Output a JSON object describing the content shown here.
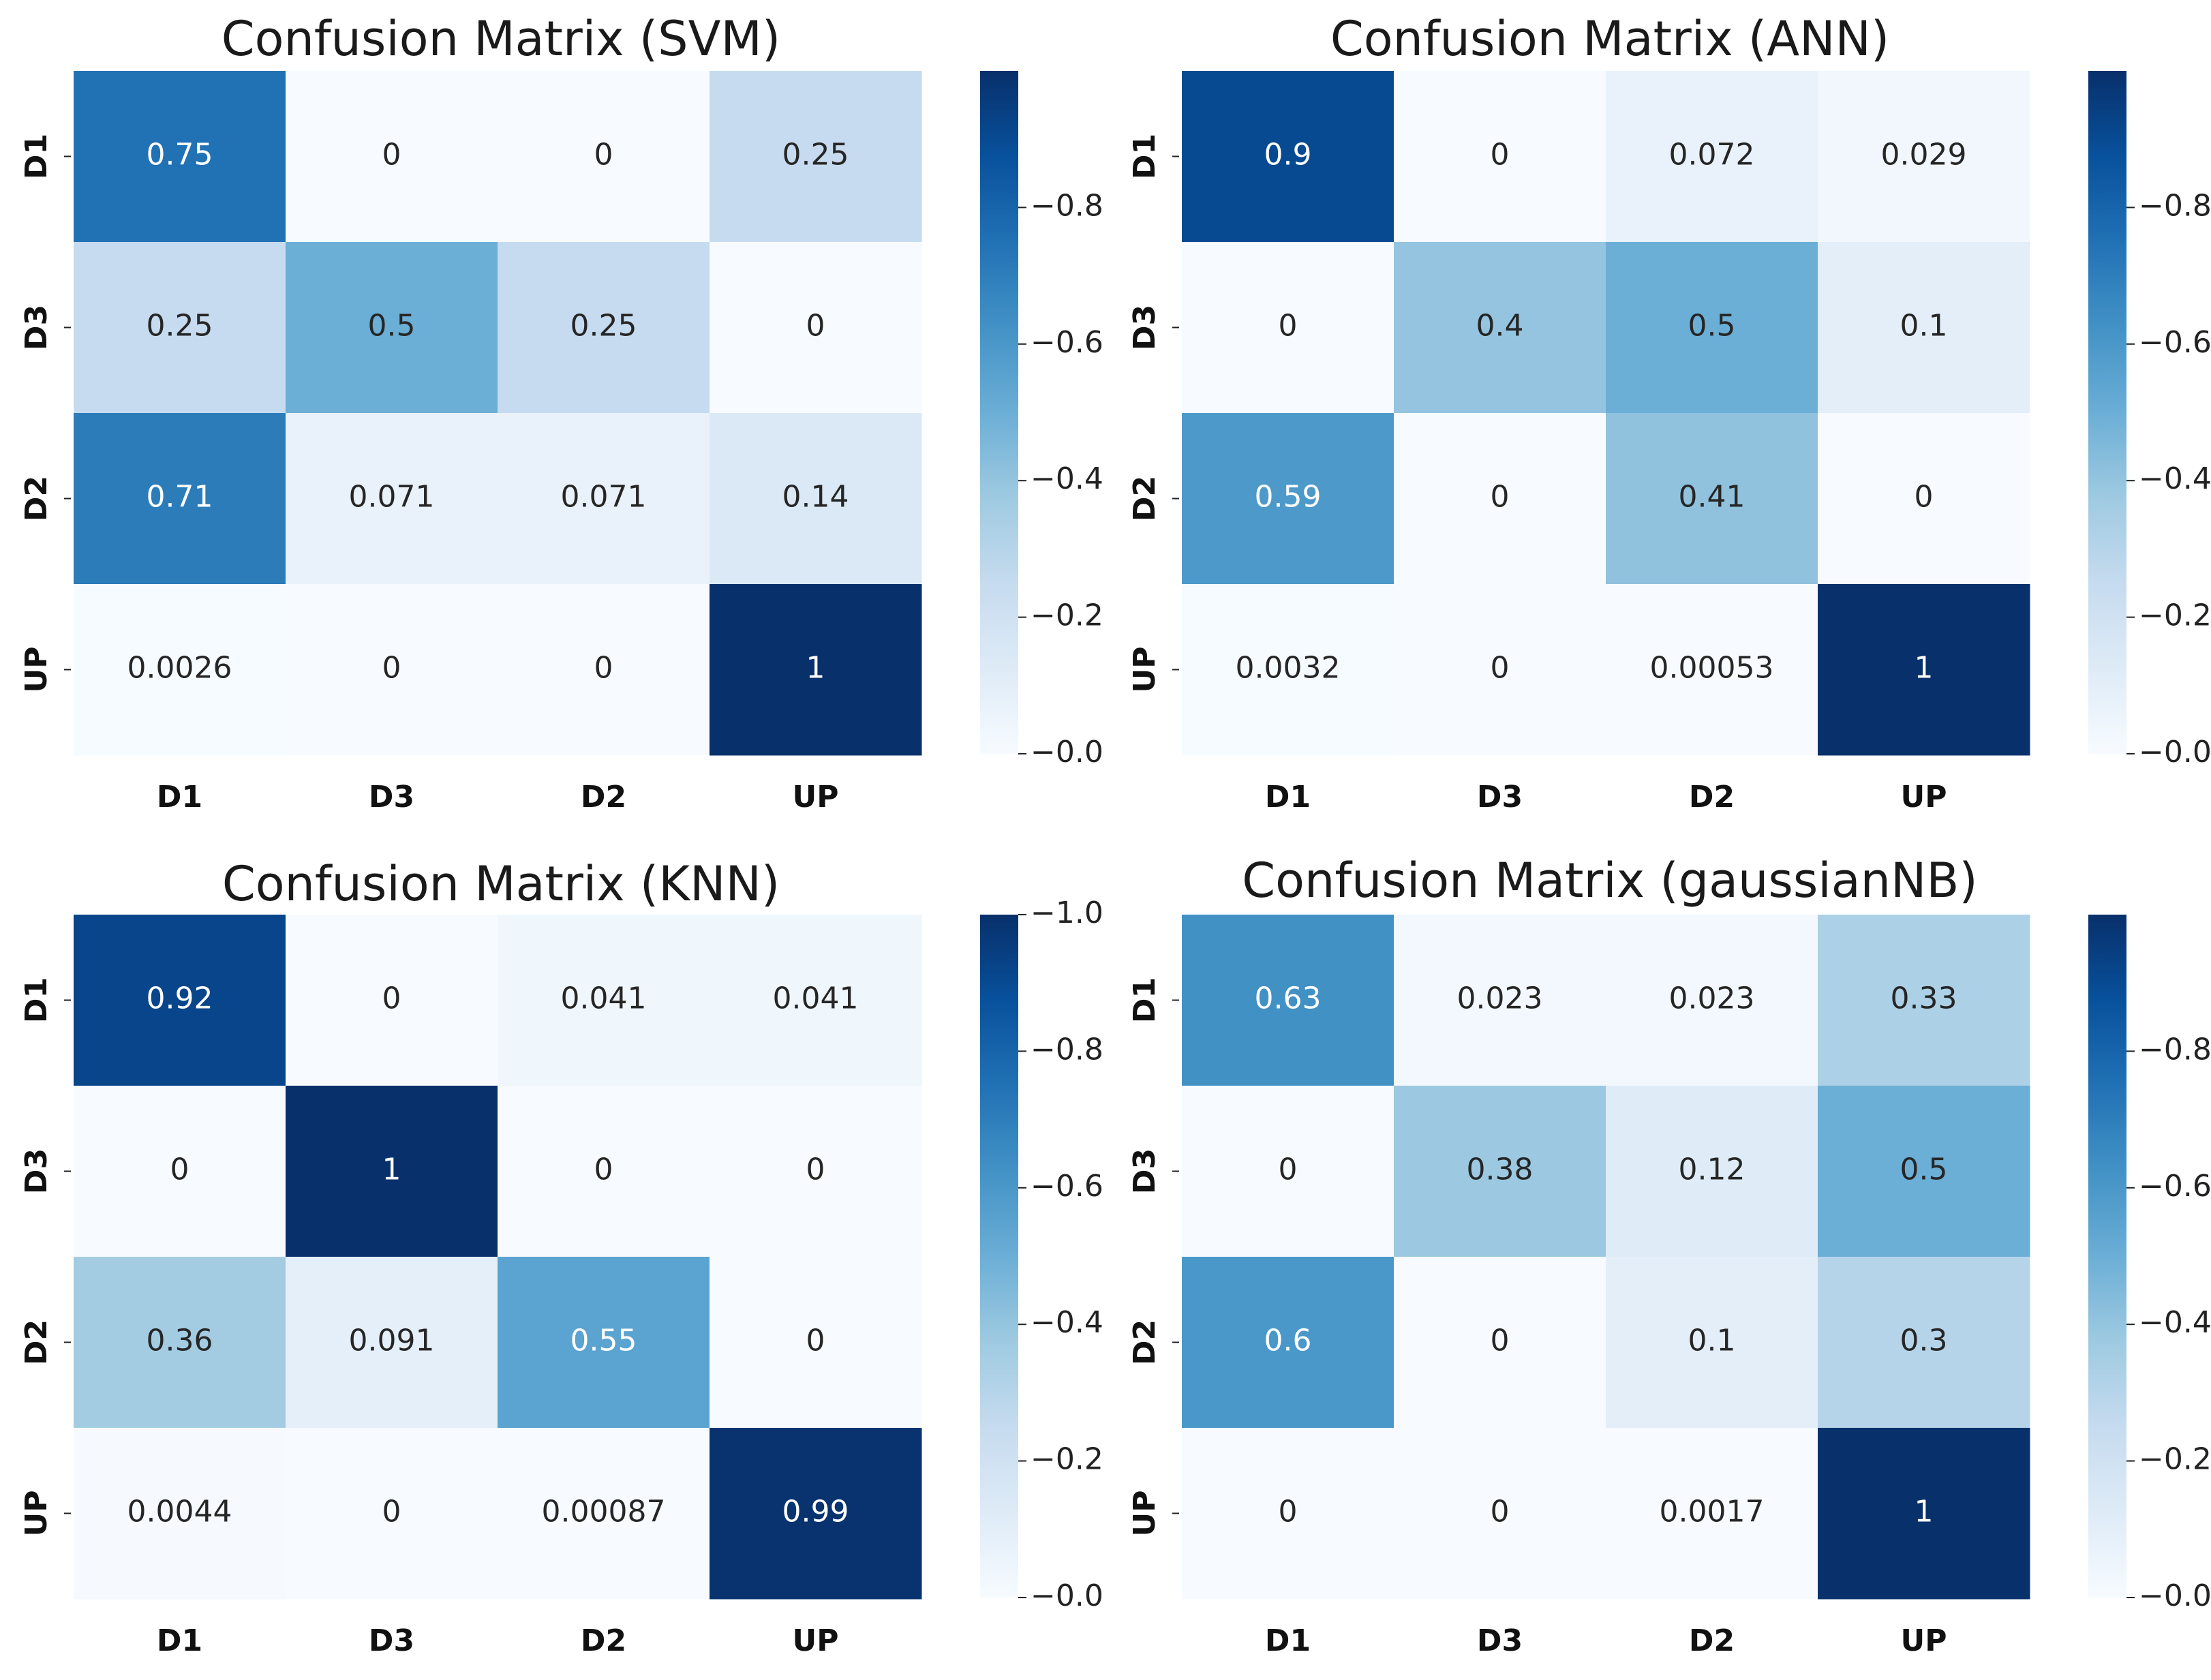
{
  "chart_data": [
    {
      "type": "heatmap",
      "title": "Confusion Matrix (SVM)",
      "row_labels": [
        "D1",
        "D3",
        "D2",
        "UP"
      ],
      "col_labels": [
        "D1",
        "D3",
        "D2",
        "UP"
      ],
      "values": [
        [
          0.75,
          0,
          0,
          0.25
        ],
        [
          0.25,
          0.5,
          0.25,
          0
        ],
        [
          0.71,
          0.071,
          0.071,
          0.14
        ],
        [
          0.0026,
          0,
          0,
          1
        ]
      ],
      "labels": [
        [
          "0.75",
          "0",
          "0",
          "0.25"
        ],
        [
          "0.25",
          "0.5",
          "0.25",
          "0"
        ],
        [
          "0.71",
          "0.071",
          "0.071",
          "0.14"
        ],
        [
          "0.0026",
          "0",
          "0",
          "1"
        ]
      ],
      "colorbar": {
        "range": [
          0,
          1
        ],
        "ticks": [
          "0.0",
          "0.2",
          "0.4",
          "0.6",
          "0.8"
        ]
      }
    },
    {
      "type": "heatmap",
      "title": "Confusion Matrix (ANN)",
      "row_labels": [
        "D1",
        "D3",
        "D2",
        "UP"
      ],
      "col_labels": [
        "D1",
        "D3",
        "D2",
        "UP"
      ],
      "values": [
        [
          0.9,
          0,
          0.072,
          0.029
        ],
        [
          0,
          0.4,
          0.5,
          0.1
        ],
        [
          0.59,
          0,
          0.41,
          0
        ],
        [
          0.0032,
          0,
          0.00053,
          1
        ]
      ],
      "labels": [
        [
          "0.9",
          "0",
          "0.072",
          "0.029"
        ],
        [
          "0",
          "0.4",
          "0.5",
          "0.1"
        ],
        [
          "0.59",
          "0",
          "0.41",
          "0"
        ],
        [
          "0.0032",
          "0",
          "0.00053",
          "1"
        ]
      ],
      "colorbar": {
        "range": [
          0,
          1
        ],
        "ticks": [
          "0.0",
          "0.2",
          "0.4",
          "0.6",
          "0.8"
        ]
      }
    },
    {
      "type": "heatmap",
      "title": "Confusion Matrix (KNN)",
      "row_labels": [
        "D1",
        "D3",
        "D2",
        "UP"
      ],
      "col_labels": [
        "D1",
        "D3",
        "D2",
        "UP"
      ],
      "values": [
        [
          0.92,
          0,
          0.041,
          0.041
        ],
        [
          0,
          1,
          0,
          0
        ],
        [
          0.36,
          0.091,
          0.55,
          0
        ],
        [
          0.0044,
          0,
          0.00087,
          0.99
        ]
      ],
      "labels": [
        [
          "0.92",
          "0",
          "0.041",
          "0.041"
        ],
        [
          "0",
          "1",
          "0",
          "0"
        ],
        [
          "0.36",
          "0.091",
          "0.55",
          "0"
        ],
        [
          "0.0044",
          "0",
          "0.00087",
          "0.99"
        ]
      ],
      "colorbar": {
        "range": [
          0,
          1
        ],
        "ticks": [
          "0.0",
          "0.2",
          "0.4",
          "0.6",
          "0.8",
          "1.0"
        ]
      }
    },
    {
      "type": "heatmap",
      "title": "Confusion Matrix (gaussianNB)",
      "row_labels": [
        "D1",
        "D3",
        "D2",
        "UP"
      ],
      "col_labels": [
        "D1",
        "D3",
        "D2",
        "UP"
      ],
      "values": [
        [
          0.63,
          0.023,
          0.023,
          0.33
        ],
        [
          0,
          0.38,
          0.12,
          0.5
        ],
        [
          0.6,
          0,
          0.1,
          0.3
        ],
        [
          0,
          0,
          0.0017,
          1
        ]
      ],
      "labels": [
        [
          "0.63",
          "0.023",
          "0.023",
          "0.33"
        ],
        [
          "0",
          "0.38",
          "0.12",
          "0.5"
        ],
        [
          "0.6",
          "0",
          "0.1",
          "0.3"
        ],
        [
          "0",
          "0",
          "0.0017",
          "1"
        ]
      ],
      "colorbar": {
        "range": [
          0,
          1
        ],
        "ticks": [
          "0.0",
          "0.2",
          "0.4",
          "0.6",
          "0.8"
        ]
      }
    }
  ],
  "colors": {
    "low": "#f7fbff",
    "high": "#08306b",
    "text_dark": "#262626",
    "text_light": "#ffffff"
  }
}
